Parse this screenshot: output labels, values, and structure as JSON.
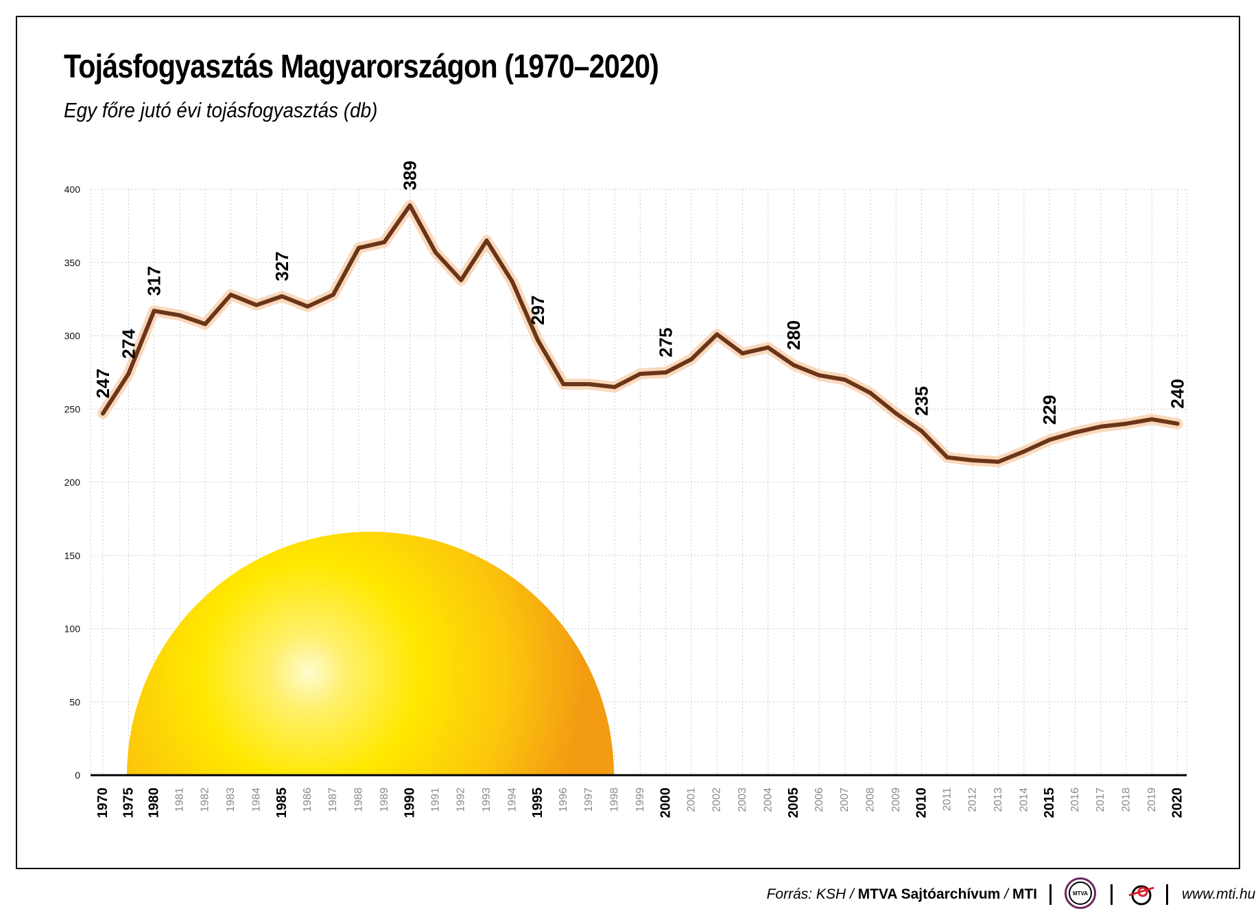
{
  "title": "Tojásfogyasztás Magyarországon (1970–2020)",
  "subtitle": "Egy főre jutó évi tojásfogyasztás (db)",
  "footer": {
    "source_prefix": "Forrás: KSH / ",
    "source_bold": "MTVA Sajtóarchívum",
    "source_sep": " / ",
    "source_bold2": "MTI",
    "mtva_logo_text": "MTVA",
    "url": "www.mti.hu"
  },
  "colors": {
    "line": "#6b3518",
    "glow": "#f7c9a3",
    "grid": "#c8c8c8",
    "sun_center": "#fff06a",
    "sun_mid": "#ffe500",
    "sun_edge": "#f39c12"
  },
  "chart_data": {
    "type": "line",
    "title": "Tojásfogyasztás Magyarországon (1970–2020)",
    "ylabel": "Egy főre jutó évi tojásfogyasztás (db)",
    "ylim": [
      0,
      400
    ],
    "yticks": [
      0,
      50,
      100,
      150,
      200,
      250,
      300,
      350,
      400
    ],
    "grid": true,
    "categories": [
      "1970",
      "1975",
      "1980",
      "1981",
      "1982",
      "1983",
      "1984",
      "1985",
      "1986",
      "1987",
      "1988",
      "1989",
      "1990",
      "1991",
      "1992",
      "1993",
      "1994",
      "1995",
      "1996",
      "1997",
      "1998",
      "1999",
      "2000",
      "2001",
      "2002",
      "2003",
      "2004",
      "2005",
      "2006",
      "2007",
      "2008",
      "2009",
      "2010",
      "2011",
      "2012",
      "2013",
      "2014",
      "2015",
      "2016",
      "2017",
      "2018",
      "2019",
      "2020"
    ],
    "bold_categories": [
      "1970",
      "1975",
      "1980",
      "1985",
      "1990",
      "1995",
      "2000",
      "2005",
      "2010",
      "2015",
      "2020"
    ],
    "values": [
      247,
      274,
      317,
      314,
      308,
      328,
      321,
      327,
      320,
      328,
      360,
      364,
      389,
      357,
      338,
      365,
      337,
      297,
      267,
      267,
      265,
      274,
      275,
      284,
      301,
      288,
      292,
      280,
      273,
      270,
      261,
      247,
      235,
      217,
      215,
      214,
      221,
      229,
      234,
      238,
      240,
      243,
      240
    ],
    "labeled_points": [
      "1970",
      "1975",
      "1980",
      "1985",
      "1990",
      "1995",
      "2000",
      "2005",
      "2010",
      "2015",
      "2020"
    ],
    "labels": [
      "247",
      "274",
      "317",
      "327",
      "389",
      "297",
      "275",
      "280",
      "235",
      "229",
      "240"
    ]
  }
}
